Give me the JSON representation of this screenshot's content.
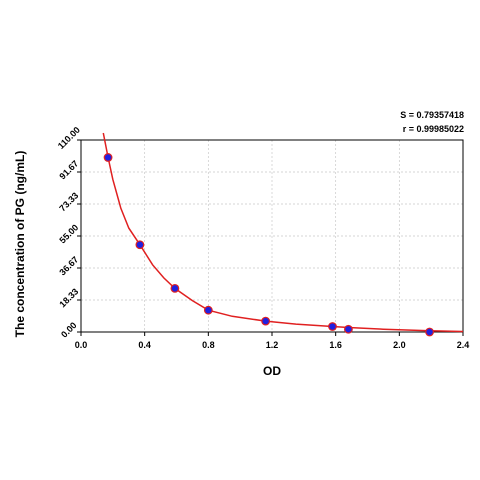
{
  "stats": {
    "s_text": "S = 0.79357418",
    "r_text": "r = 0.99985022"
  },
  "chart_data": {
    "type": "scatter",
    "title": "",
    "xlabel": "OD",
    "ylabel": "The concentration of PG (ng/mL)",
    "xlim": [
      0.0,
      2.4
    ],
    "ylim": [
      0.0,
      110.0
    ],
    "x_ticks": [
      "0.0",
      "0.4",
      "0.8",
      "1.2",
      "1.6",
      "2.0",
      "2.4"
    ],
    "y_ticks": [
      "0.00",
      "18.33",
      "36.67",
      "55.00",
      "73.33",
      "91.67",
      "110.00"
    ],
    "grid": true,
    "points": [
      {
        "x": 0.17,
        "y": 100.0
      },
      {
        "x": 0.37,
        "y": 50.0
      },
      {
        "x": 0.59,
        "y": 25.0
      },
      {
        "x": 0.8,
        "y": 12.5
      },
      {
        "x": 1.16,
        "y": 6.25
      },
      {
        "x": 1.58,
        "y": 3.13
      },
      {
        "x": 1.68,
        "y": 1.56
      },
      {
        "x": 2.19,
        "y": 0.0
      }
    ],
    "fit_curve": {
      "x": [
        0.14,
        0.17,
        0.2,
        0.25,
        0.3,
        0.37,
        0.45,
        0.52,
        0.59,
        0.7,
        0.8,
        0.95,
        1.16,
        1.35,
        1.58,
        1.68,
        1.9,
        2.19,
        2.4
      ],
      "y": [
        114.0,
        100.0,
        87.5,
        71.0,
        59.5,
        50.0,
        38.5,
        31.0,
        25.0,
        18.0,
        12.5,
        9.0,
        6.25,
        4.5,
        3.13,
        2.6,
        1.6,
        0.7,
        0.3
      ]
    },
    "colors": {
      "curve": "#e02020",
      "point_fill": "#2020e0",
      "grid": "#c8c8c8",
      "axis": "#000000"
    }
  }
}
